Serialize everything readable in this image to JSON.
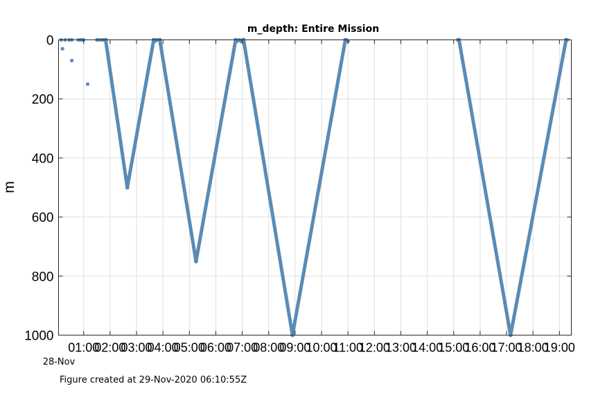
{
  "chart_data": {
    "type": "scatter",
    "title": "m_depth: Entire Mission",
    "ylabel": "m",
    "xlabel": "",
    "x_units": "hours since 28-Nov 00:00",
    "date_label": "28-Nov",
    "xlim": [
      0.05,
      19.45
    ],
    "ylim": [
      0,
      1000
    ],
    "y_reversed": true,
    "grid": true,
    "yticks": [
      0,
      200,
      400,
      600,
      800,
      1000
    ],
    "xticks": [
      {
        "x": 1,
        "label": "01:00"
      },
      {
        "x": 2,
        "label": "02:00"
      },
      {
        "x": 3,
        "label": "03:00"
      },
      {
        "x": 4,
        "label": "04:00"
      },
      {
        "x": 5,
        "label": "05:00"
      },
      {
        "x": 6,
        "label": "06:00"
      },
      {
        "x": 7,
        "label": "07:00"
      },
      {
        "x": 8,
        "label": "08:00"
      },
      {
        "x": 9,
        "label": "09:00"
      },
      {
        "x": 10,
        "label": "10:00"
      },
      {
        "x": 11,
        "label": "11:00"
      },
      {
        "x": 12,
        "label": "12:00"
      },
      {
        "x": 13,
        "label": "13:00"
      },
      {
        "x": 14,
        "label": "14:00"
      },
      {
        "x": 15,
        "label": "15:00"
      },
      {
        "x": 16,
        "label": "16:00"
      },
      {
        "x": 17,
        "label": "17:00"
      },
      {
        "x": 18,
        "label": "18:00"
      },
      {
        "x": 19,
        "label": "19:00"
      }
    ],
    "series": [
      {
        "color": "#5a8bb5",
        "segments": [
          [
            [
              1.83,
              0
            ],
            [
              2.65,
              500
            ],
            [
              3.65,
              0
            ]
          ],
          [
            [
              3.88,
              0
            ],
            [
              5.25,
              750
            ],
            [
              6.75,
              0
            ]
          ],
          [
            [
              7.05,
              0
            ],
            [
              8.9,
              1000
            ],
            [
              10.9,
              0
            ]
          ],
          [
            [
              15.2,
              0
            ],
            [
              17.15,
              1000
            ],
            [
              19.25,
              0
            ]
          ]
        ],
        "surface_points": [
          [
            0.15,
            0
          ],
          [
            0.2,
            30
          ],
          [
            0.3,
            0
          ],
          [
            0.45,
            0
          ],
          [
            0.55,
            70
          ],
          [
            0.55,
            0
          ],
          [
            0.8,
            0
          ],
          [
            0.9,
            0
          ],
          [
            0.95,
            0
          ],
          [
            1.0,
            0
          ],
          [
            1.15,
            150
          ],
          [
            1.5,
            0
          ],
          [
            1.6,
            0
          ],
          [
            1.7,
            0
          ],
          [
            1.75,
            0
          ],
          [
            1.85,
            0
          ],
          [
            3.65,
            0
          ],
          [
            3.7,
            5
          ],
          [
            3.75,
            0
          ],
          [
            3.8,
            0
          ],
          [
            3.88,
            0
          ],
          [
            6.75,
            0
          ],
          [
            6.8,
            5
          ],
          [
            6.88,
            0
          ],
          [
            6.95,
            5
          ],
          [
            7.0,
            0
          ],
          [
            7.05,
            0
          ],
          [
            10.9,
            0
          ],
          [
            10.95,
            0
          ],
          [
            11.0,
            5
          ],
          [
            15.15,
            0
          ],
          [
            15.2,
            5
          ],
          [
            19.25,
            0
          ],
          [
            19.3,
            0
          ]
        ]
      }
    ]
  },
  "footer": {
    "created": "Figure created at 29-Nov-2020 06:10:55Z"
  }
}
